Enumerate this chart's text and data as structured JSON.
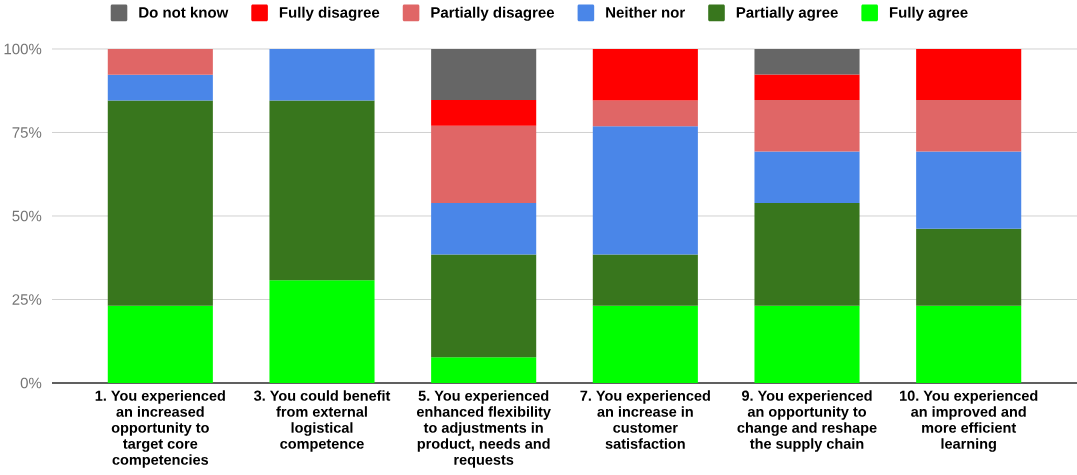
{
  "chart_data": {
    "type": "bar",
    "stacked": true,
    "categories": [
      "1. You experienced an increased opportunity to target core competencies",
      "3. You could benefit from external logistical competence",
      "5. You experienced enhanced flexibility to adjustments in product, needs and requests",
      "7. You experienced an increase in customer satisfaction",
      "9. You experienced an opportunity to change and reshape the supply chain",
      "10. You experienced an improved and more efficient learning"
    ],
    "series": [
      {
        "name": "Fully agree",
        "color": "#00ff00",
        "values": [
          23.1,
          30.8,
          7.7,
          23.1,
          23.1,
          23.1
        ]
      },
      {
        "name": "Partially agree",
        "color": "#38761d",
        "values": [
          61.5,
          53.8,
          30.8,
          15.4,
          30.8,
          23.1
        ]
      },
      {
        "name": "Neither nor",
        "color": "#4a86e8",
        "values": [
          7.7,
          15.4,
          15.4,
          38.4,
          15.4,
          23.1
        ]
      },
      {
        "name": "Partially disagree",
        "color": "#e06666",
        "values": [
          7.7,
          0,
          23.1,
          7.7,
          15.4,
          15.4
        ]
      },
      {
        "name": "Fully disagree",
        "color": "#ff0000",
        "values": [
          0,
          0,
          7.7,
          15.4,
          7.7,
          15.3
        ]
      },
      {
        "name": "Do not know",
        "color": "#666666",
        "values": [
          0,
          0,
          15.3,
          0,
          7.6,
          0
        ]
      }
    ],
    "ylim": [
      0,
      100
    ],
    "yticks": [
      {
        "value": 0,
        "label": "0%"
      },
      {
        "value": 25,
        "label": "25%"
      },
      {
        "value": 50,
        "label": "50%"
      },
      {
        "value": 75,
        "label": "75%"
      },
      {
        "value": 100,
        "label": "100%"
      }
    ],
    "grid": "y",
    "legend": "top"
  }
}
